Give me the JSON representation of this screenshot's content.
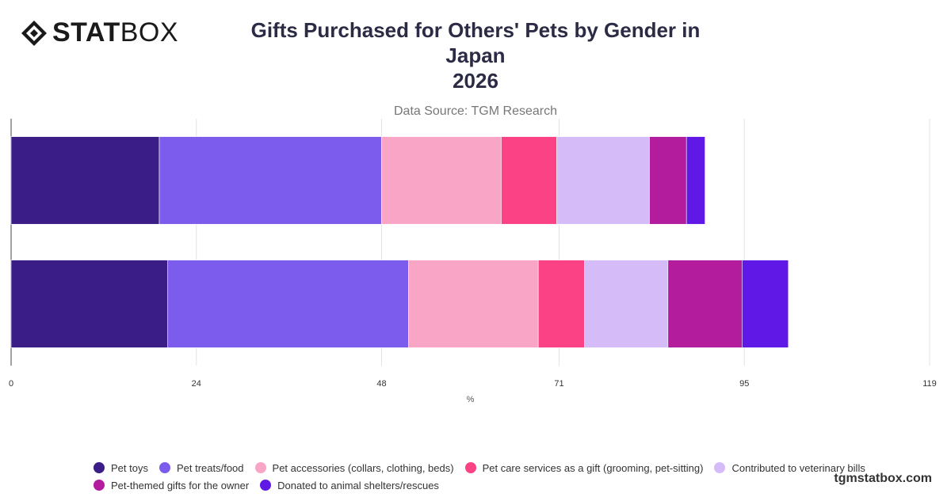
{
  "header": {
    "logo_text_bold": "STAT",
    "logo_text_light": "BOX",
    "title_line1": "Gifts Purchased for Others' Pets by Gender in Japan",
    "title_line2": "2026",
    "subtitle": "Data Source: TGM Research"
  },
  "footer": {
    "brand": "tgmstatbox.com"
  },
  "chart_data": {
    "type": "bar",
    "orientation": "horizontal",
    "stacked": true,
    "categories": [
      "",
      ""
    ],
    "xlabel": "%",
    "xlim": [
      0,
      119
    ],
    "xticks": [
      "0",
      "24",
      "48",
      "71",
      "95",
      "119"
    ],
    "grid": true,
    "legend_position": "bottom",
    "series": [
      {
        "name": "Pet toys",
        "color": "#3a1d86",
        "values": [
          19.2,
          20.3
        ]
      },
      {
        "name": "Pet treats/food",
        "color": "#7c5cec",
        "values": [
          28.8,
          31.2
        ]
      },
      {
        "name": "Pet accessories (collars, clothing, beds)",
        "color": "#f9a6c6",
        "values": [
          15.5,
          16.8
        ]
      },
      {
        "name": "Pet care services as a gift (grooming, pet-sitting)",
        "color": "#fb4285",
        "values": [
          7.2,
          6.0
        ]
      },
      {
        "name": "Contributed to veterinary bills",
        "color": "#d5bcf9",
        "values": [
          12.0,
          10.8
        ]
      },
      {
        "name": "Pet-themed gifts for the owner",
        "color": "#b21c9d",
        "values": [
          4.8,
          9.6
        ]
      },
      {
        "name": "Donated to animal shelters/rescues",
        "color": "#6018e6",
        "values": [
          2.4,
          6.0
        ]
      }
    ]
  }
}
